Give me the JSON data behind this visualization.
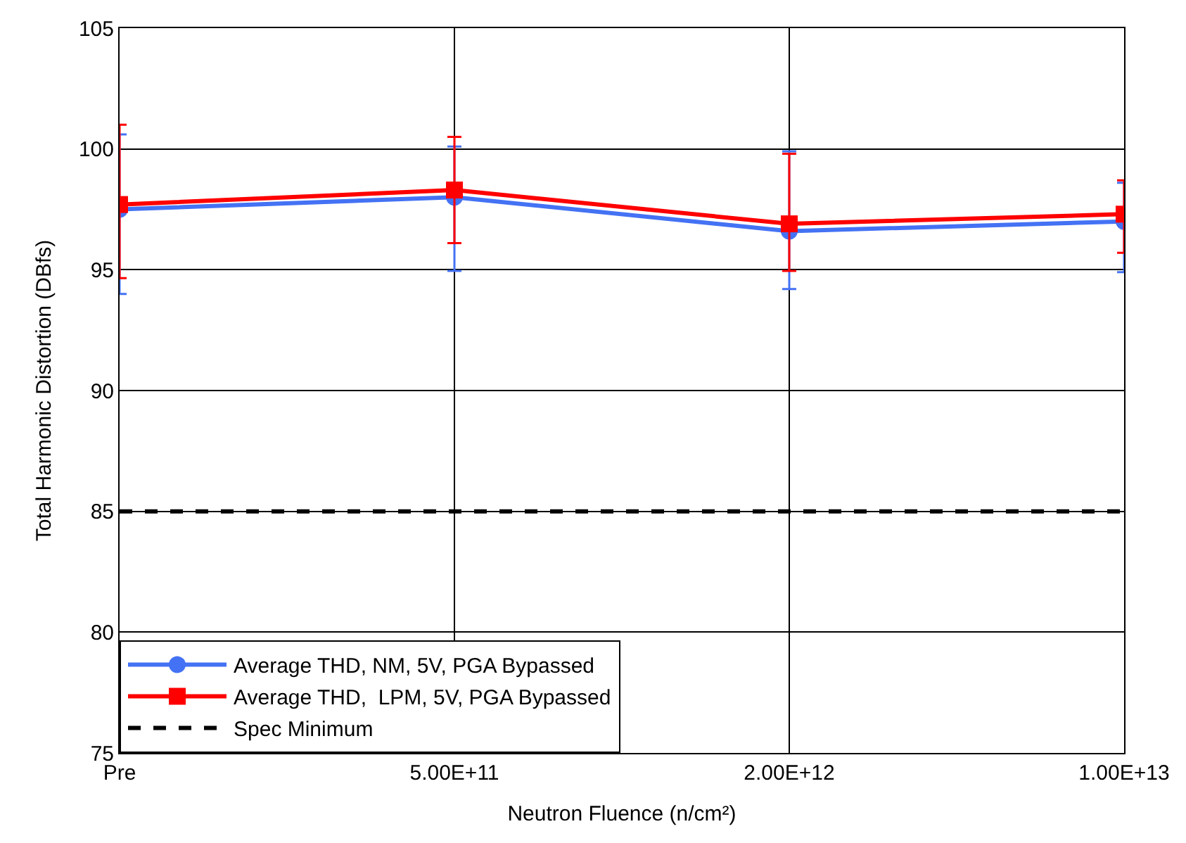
{
  "chart_data": {
    "type": "line",
    "xlabel": "Neutron Fluence (n/cm²)",
    "ylabel": "Total Harmonic Distortion (DBfs)",
    "categories": [
      "Pre",
      "5.00E+11",
      "2.00E+12",
      "1.00E+13"
    ],
    "series": [
      {
        "name": "Average THD, NM, 5V, PGA Bypassed",
        "color": "#4472f4",
        "marker": "circle",
        "values": [
          97.5,
          98.0,
          96.6,
          97.0
        ],
        "errors": [
          [
            94.0,
            100.6
          ],
          [
            94.95,
            100.1
          ],
          [
            94.2,
            99.9
          ],
          [
            94.9,
            98.6
          ]
        ]
      },
      {
        "name": "Average THD,  LPM, 5V, PGA Bypassed",
        "color": "#ff0000",
        "marker": "square",
        "values": [
          97.7,
          98.3,
          96.9,
          97.3
        ],
        "errors": [
          [
            94.65,
            101.0
          ],
          [
            96.1,
            100.5
          ],
          [
            94.95,
            99.8
          ],
          [
            95.7,
            98.7
          ]
        ]
      }
    ],
    "ref_lines": [
      {
        "axis": "y",
        "value": 85,
        "label": "Spec Minimum",
        "color": "#000000",
        "line_style": "dashed"
      }
    ],
    "ylim": [
      75,
      105
    ],
    "yticks": [
      75,
      80,
      85,
      90,
      95,
      100,
      105
    ],
    "grid": true,
    "legend": "bottom left"
  }
}
